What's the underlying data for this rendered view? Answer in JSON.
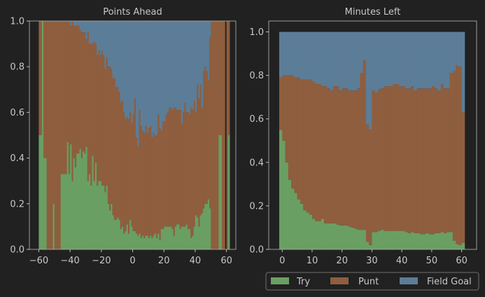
{
  "colors": {
    "try": "#6a9f63",
    "punt": "#8e5e3e",
    "fg": "#5c7d98",
    "axis": "#bdbdbd",
    "bg": "#212121"
  },
  "legend": {
    "labels": [
      "Try",
      "Punt",
      "Field Goal"
    ]
  },
  "chart_data": [
    {
      "type": "bar",
      "stacked": true,
      "title": "Points Ahead",
      "xlabel": "",
      "ylabel": "",
      "xlim": [
        -66,
        66
      ],
      "ylim": [
        0,
        1.0
      ],
      "xticks": [
        -60,
        -40,
        -20,
        0,
        20,
        40,
        60
      ],
      "yticks": [
        0.0,
        0.2,
        0.4,
        0.6,
        0.8,
        1.0
      ],
      "x": [
        -60,
        -59,
        -58,
        -57,
        -56,
        -55,
        -54,
        -53,
        -52,
        -51,
        -50,
        -49,
        -48,
        -47,
        -46,
        -45,
        -44,
        -43,
        -42,
        -41,
        -40,
        -39,
        -38,
        -37,
        -36,
        -35,
        -34,
        -33,
        -32,
        -31,
        -30,
        -29,
        -28,
        -27,
        -26,
        -25,
        -24,
        -23,
        -22,
        -21,
        -20,
        -19,
        -18,
        -17,
        -16,
        -15,
        -14,
        -13,
        -12,
        -11,
        -10,
        -9,
        -8,
        -7,
        -6,
        -5,
        -4,
        -3,
        -2,
        -1,
        0,
        1,
        2,
        3,
        4,
        5,
        6,
        7,
        8,
        9,
        10,
        11,
        12,
        13,
        14,
        15,
        16,
        17,
        18,
        19,
        20,
        21,
        22,
        23,
        24,
        25,
        26,
        27,
        28,
        29,
        30,
        31,
        32,
        33,
        34,
        35,
        36,
        37,
        38,
        39,
        40,
        41,
        42,
        43,
        44,
        45,
        46,
        47,
        48,
        49,
        50,
        51,
        52,
        53,
        54,
        55,
        56,
        57,
        58,
        59,
        60,
        61
      ],
      "series": [
        {
          "key": "try",
          "name": "Try",
          "values": [
            0.5,
            0.5,
            1.0,
            0.4,
            0.4,
            0.0,
            0.0,
            0.0,
            0.0,
            0.2,
            0.0,
            0.0,
            0.0,
            0.0,
            0.33,
            0.33,
            0.33,
            0.33,
            0.47,
            0.33,
            0.46,
            0.3,
            0.4,
            0.36,
            0.42,
            0.42,
            0.44,
            0.4,
            0.43,
            0.42,
            0.45,
            0.3,
            0.33,
            0.28,
            0.41,
            0.3,
            0.38,
            0.28,
            0.3,
            0.3,
            0.28,
            0.28,
            0.25,
            0.28,
            0.2,
            0.17,
            0.2,
            0.15,
            0.13,
            0.13,
            0.14,
            0.13,
            0.09,
            0.1,
            0.07,
            0.08,
            0.11,
            0.07,
            0.13,
            0.1,
            0.08,
            0.08,
            0.07,
            0.06,
            0.07,
            0.05,
            0.06,
            0.05,
            0.06,
            0.06,
            0.05,
            0.06,
            0.05,
            0.06,
            0.07,
            0.05,
            0.07,
            0.04,
            0.09,
            0.09,
            0.1,
            0.1,
            0.1,
            0.1,
            0.1,
            0.09,
            0.06,
            0.1,
            0.11,
            0.11,
            0.09,
            0.1,
            0.1,
            0.1,
            0.11,
            0.09,
            0.09,
            0.05,
            0.06,
            0.1,
            0.15,
            0.14,
            0.1,
            0.15,
            0.16,
            0.18,
            0.2,
            0.2,
            0.22,
            0.18,
            0.0,
            0.0,
            0.0,
            0.0,
            0.0,
            0.5,
            0.5,
            0.0,
            0.0,
            0.0,
            0.0,
            0.5
          ]
        },
        {
          "key": "punt",
          "name": "Punt",
          "values": [
            0.5,
            0.5,
            0.0,
            0.6,
            0.6,
            1.0,
            1.0,
            1.0,
            1.0,
            0.8,
            1.0,
            1.0,
            1.0,
            1.0,
            0.67,
            0.67,
            0.67,
            0.67,
            0.53,
            0.67,
            0.52,
            0.7,
            0.58,
            0.62,
            0.56,
            0.56,
            0.52,
            0.55,
            0.52,
            0.53,
            0.47,
            0.65,
            0.57,
            0.62,
            0.49,
            0.61,
            0.52,
            0.57,
            0.57,
            0.55,
            0.59,
            0.57,
            0.54,
            0.56,
            0.6,
            0.63,
            0.59,
            0.6,
            0.62,
            0.58,
            0.57,
            0.56,
            0.55,
            0.55,
            0.53,
            0.49,
            0.47,
            0.5,
            0.47,
            0.45,
            0.51,
            0.58,
            0.42,
            0.39,
            0.54,
            0.49,
            0.46,
            0.46,
            0.48,
            0.45,
            0.48,
            0.48,
            0.44,
            0.45,
            0.43,
            0.45,
            0.52,
            0.49,
            0.43,
            0.47,
            0.46,
            0.49,
            0.5,
            0.52,
            0.52,
            0.52,
            0.56,
            0.52,
            0.5,
            0.5,
            0.52,
            0.45,
            0.5,
            0.54,
            0.49,
            0.51,
            0.5,
            0.57,
            0.55,
            0.55,
            0.45,
            0.58,
            0.56,
            0.57,
            0.46,
            0.6,
            0.6,
            0.58,
            0.52,
            0.75,
            1.0,
            1.0,
            1.0,
            1.0,
            1.0,
            0.5,
            0.5,
            1.0,
            1.0,
            0.0,
            1.0,
            0.5
          ]
        },
        {
          "key": "fg",
          "name": "Field Goal",
          "values": [
            0.0,
            0.0,
            0.0,
            0.0,
            0.0,
            0.0,
            0.0,
            0.0,
            0.0,
            0.0,
            0.0,
            0.0,
            0.0,
            0.0,
            0.0,
            0.0,
            0.0,
            0.0,
            0.0,
            0.0,
            0.02,
            0.0,
            0.02,
            0.02,
            0.02,
            0.02,
            0.04,
            0.05,
            0.05,
            0.05,
            0.08,
            0.05,
            0.1,
            0.1,
            0.1,
            0.09,
            0.1,
            0.15,
            0.13,
            0.15,
            0.13,
            0.15,
            0.21,
            0.16,
            0.2,
            0.2,
            0.21,
            0.25,
            0.25,
            0.29,
            0.29,
            0.31,
            0.36,
            0.35,
            0.4,
            0.43,
            0.42,
            0.43,
            0.4,
            0.45,
            0.41,
            0.34,
            0.51,
            0.55,
            0.39,
            0.46,
            0.48,
            0.49,
            0.46,
            0.49,
            0.47,
            0.46,
            0.51,
            0.49,
            0.5,
            0.5,
            0.41,
            0.47,
            0.48,
            0.44,
            0.44,
            0.41,
            0.4,
            0.38,
            0.38,
            0.39,
            0.38,
            0.38,
            0.39,
            0.39,
            0.39,
            0.45,
            0.4,
            0.36,
            0.4,
            0.4,
            0.41,
            0.38,
            0.39,
            0.35,
            0.4,
            0.28,
            0.34,
            0.28,
            0.38,
            0.22,
            0.2,
            0.22,
            0.26,
            0.07,
            0.0,
            0.0,
            0.0,
            0.0,
            0.0,
            0.0,
            0.0,
            0.0,
            0.0,
            0.0,
            0.0,
            0.0
          ]
        }
      ]
    },
    {
      "type": "bar",
      "stacked": true,
      "title": "Minutes Left",
      "xlabel": "",
      "ylabel": "",
      "xlim": [
        -4.5,
        65
      ],
      "ylim": [
        0,
        1.05
      ],
      "xticks": [
        0,
        10,
        20,
        30,
        40,
        50,
        60
      ],
      "yticks": [
        0.0,
        0.2,
        0.4,
        0.6,
        0.8,
        1.0
      ],
      "x": [
        -1,
        0,
        1,
        2,
        3,
        4,
        5,
        6,
        7,
        8,
        9,
        10,
        11,
        12,
        13,
        14,
        15,
        16,
        17,
        18,
        19,
        20,
        21,
        22,
        23,
        24,
        25,
        26,
        27,
        28,
        29,
        30,
        31,
        32,
        33,
        34,
        35,
        36,
        37,
        38,
        39,
        40,
        41,
        42,
        43,
        44,
        45,
        46,
        47,
        48,
        49,
        50,
        51,
        52,
        53,
        54,
        55,
        56,
        57,
        58,
        59,
        60
      ],
      "series": [
        {
          "key": "try",
          "name": "Try",
          "values": [
            0.55,
            0.5,
            0.4,
            0.32,
            0.28,
            0.26,
            0.23,
            0.21,
            0.18,
            0.17,
            0.16,
            0.14,
            0.13,
            0.13,
            0.14,
            0.12,
            0.12,
            0.12,
            0.12,
            0.115,
            0.11,
            0.11,
            0.11,
            0.105,
            0.1,
            0.095,
            0.09,
            0.09,
            0.09,
            0.035,
            0.02,
            0.08,
            0.08,
            0.085,
            0.09,
            0.085,
            0.085,
            0.085,
            0.085,
            0.085,
            0.085,
            0.085,
            0.08,
            0.075,
            0.08,
            0.075,
            0.075,
            0.07,
            0.07,
            0.075,
            0.07,
            0.07,
            0.075,
            0.075,
            0.08,
            0.075,
            0.08,
            0.08,
            0.04,
            0.025,
            0.02,
            0.03
          ]
        },
        {
          "key": "punt",
          "name": "Punt",
          "values": [
            0.24,
            0.3,
            0.4,
            0.48,
            0.52,
            0.53,
            0.56,
            0.57,
            0.6,
            0.61,
            0.62,
            0.63,
            0.63,
            0.63,
            0.61,
            0.63,
            0.62,
            0.61,
            0.63,
            0.635,
            0.62,
            0.63,
            0.63,
            0.625,
            0.63,
            0.635,
            0.65,
            0.72,
            0.78,
            0.54,
            0.53,
            0.65,
            0.64,
            0.65,
            0.65,
            0.665,
            0.665,
            0.665,
            0.675,
            0.675,
            0.665,
            0.665,
            0.66,
            0.665,
            0.67,
            0.655,
            0.665,
            0.67,
            0.67,
            0.665,
            0.67,
            0.68,
            0.665,
            0.655,
            0.68,
            0.665,
            0.66,
            0.73,
            0.78,
            0.82,
            0.82,
            0.6
          ]
        },
        {
          "key": "fg",
          "name": "Field Goal",
          "values": [
            0.21,
            0.2,
            0.2,
            0.2,
            0.2,
            0.21,
            0.21,
            0.22,
            0.22,
            0.22,
            0.22,
            0.23,
            0.24,
            0.24,
            0.25,
            0.25,
            0.26,
            0.27,
            0.25,
            0.25,
            0.27,
            0.26,
            0.26,
            0.27,
            0.27,
            0.27,
            0.26,
            0.19,
            0.13,
            0.425,
            0.45,
            0.27,
            0.28,
            0.265,
            0.26,
            0.25,
            0.25,
            0.25,
            0.24,
            0.24,
            0.25,
            0.25,
            0.26,
            0.26,
            0.25,
            0.27,
            0.26,
            0.26,
            0.26,
            0.26,
            0.26,
            0.25,
            0.26,
            0.27,
            0.24,
            0.26,
            0.26,
            0.19,
            0.18,
            0.155,
            0.16,
            0.37
          ]
        }
      ]
    }
  ]
}
